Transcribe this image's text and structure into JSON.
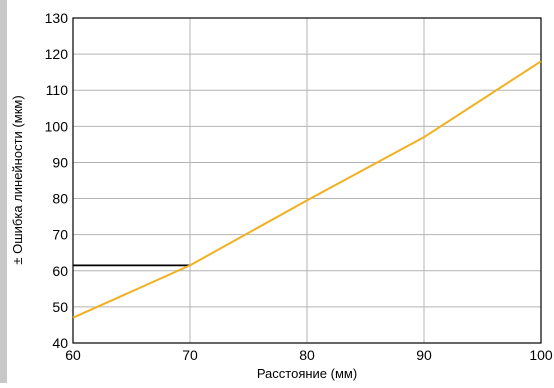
{
  "chart_data": {
    "type": "line",
    "xlabel": "Расстояние (мм)",
    "ylabel": "± Ошибка линейности (мкм)",
    "xlim": [
      60,
      100
    ],
    "ylim": [
      40,
      130
    ],
    "x_ticks": [
      60,
      70,
      80,
      90,
      100
    ],
    "y_ticks": [
      40,
      50,
      60,
      70,
      80,
      90,
      100,
      110,
      120,
      130
    ],
    "grid": true,
    "series": [
      {
        "color": "#F0B020",
        "x": [
          60,
          70,
          80,
          90,
          100
        ],
        "y": [
          47,
          61.5,
          79.5,
          97,
          118
        ]
      }
    ],
    "reference_line": {
      "color": "#000000",
      "x": [
        60,
        70
      ],
      "y": [
        61.5,
        61.5
      ]
    }
  }
}
